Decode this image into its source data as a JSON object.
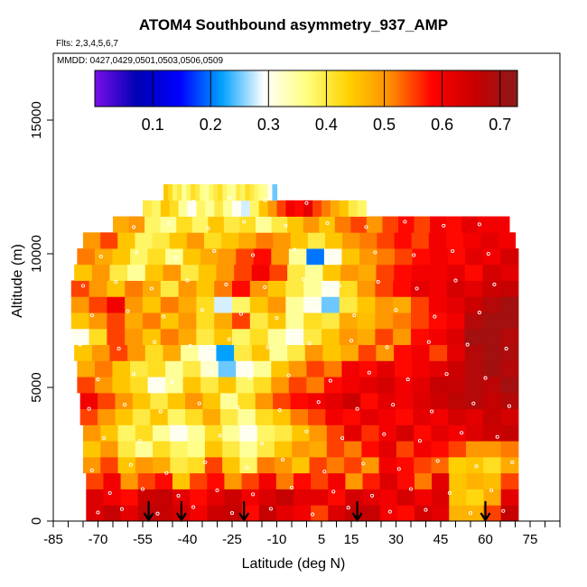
{
  "chart_data": {
    "type": "heatmap",
    "title": "ATOM4 Southbound asymmetry_937_AMP",
    "flights_note": "Flts: 2,3,4,5,6,7",
    "dates_note": "MMDD: 0427,0429,0501,0503,0506,0509",
    "xlabel": "Latitude (deg N)",
    "ylabel": "Altitude (m)",
    "xlim": [
      -85,
      85
    ],
    "ylim": [
      0,
      17500
    ],
    "x_tick_labels": [
      "-85",
      "-70",
      "-55",
      "-40",
      "-25",
      "-10",
      "5",
      "15",
      "30",
      "45",
      "60",
      "75"
    ],
    "x_ticks": [
      -85,
      -70,
      -55,
      -40,
      -25,
      -10,
      5,
      15,
      30,
      45,
      60,
      75
    ],
    "x_minor_ticks": [
      -80,
      -75,
      -65,
      -60,
      -50,
      -45,
      -35,
      -30,
      -20,
      -15,
      -5,
      0,
      10,
      20,
      25,
      35,
      40,
      50,
      55,
      65,
      70,
      80,
      85
    ],
    "y_ticks": [
      0,
      5000,
      10000,
      15000
    ],
    "y_tick_labels": [
      "0",
      "5000",
      "10000",
      "15000"
    ],
    "colorbar": {
      "range": [
        0,
        0.73
      ],
      "tick_values": [
        0.1,
        0.2,
        0.3,
        0.4,
        0.5,
        0.6,
        0.7
      ],
      "tick_labels": [
        "0.1",
        "0.2",
        "0.3",
        "0.4",
        "0.5",
        "0.6",
        "0.7"
      ],
      "colors": [
        "#7a0fe8",
        "#0000b4",
        "#0000ff",
        "#00a0ff",
        "#ffffff",
        "#ffff80",
        "#ffd200",
        "#ff8c00",
        "#ff0000",
        "#c80000",
        "#8b1a1a"
      ]
    },
    "flight_arrow_latitudes": [
      -53,
      -42,
      -21,
      17,
      60
    ],
    "altitude_bands": [
      {
        "alt": 300,
        "lat": [
          -74,
          71
        ],
        "v": [
          0.63,
          0.66,
          0.62,
          0.67,
          0.66,
          0.64,
          0.6,
          0.65,
          0.66,
          0.58,
          0.66,
          0.62,
          0.6,
          0.55,
          0.63,
          0.66,
          0.66,
          0.6,
          0.58,
          0.64,
          0.62,
          0.47,
          0.47,
          0.55,
          0.66
        ]
      },
      {
        "alt": 900,
        "lat": [
          -74,
          71
        ],
        "v": [
          0.63,
          0.6,
          0.58,
          0.65,
          0.66,
          0.62,
          0.58,
          0.62,
          0.65,
          0.6,
          0.63,
          0.66,
          0.62,
          0.62,
          0.58,
          0.64,
          0.62,
          0.6,
          0.64,
          0.6,
          0.63,
          0.45,
          0.43,
          0.48,
          0.62
        ]
      },
      {
        "alt": 1500,
        "lat": [
          -74,
          71
        ],
        "v": [
          0.55,
          0.6,
          0.5,
          0.55,
          0.58,
          0.45,
          0.55,
          0.58,
          0.5,
          0.55,
          0.6,
          0.52,
          0.58,
          0.55,
          0.6,
          0.5,
          0.57,
          0.63,
          0.58,
          0.52,
          0.62,
          0.45,
          0.47,
          0.46,
          0.55
        ]
      },
      {
        "alt": 2100,
        "lat": [
          -75,
          71
        ],
        "v": [
          0.5,
          0.55,
          0.45,
          0.5,
          0.48,
          0.4,
          0.42,
          0.55,
          0.45,
          0.38,
          0.52,
          0.5,
          0.45,
          0.55,
          0.52,
          0.55,
          0.5,
          0.6,
          0.58,
          0.55,
          0.53,
          0.44,
          0.45,
          0.42,
          0.48
        ]
      },
      {
        "alt": 2700,
        "lat": [
          -75,
          71
        ],
        "v": [
          0.45,
          0.5,
          0.4,
          0.35,
          0.42,
          0.38,
          0.36,
          0.45,
          0.4,
          0.35,
          0.4,
          0.45,
          0.5,
          0.48,
          0.55,
          0.52,
          0.58,
          0.62,
          0.55,
          0.6,
          0.58,
          0.55,
          0.5,
          0.5,
          0.52
        ]
      },
      {
        "alt": 3300,
        "lat": [
          -75,
          71
        ],
        "v": [
          0.5,
          0.45,
          0.38,
          0.42,
          0.35,
          0.3,
          0.35,
          0.42,
          0.35,
          0.3,
          0.38,
          0.4,
          0.45,
          0.5,
          0.55,
          0.62,
          0.56,
          0.6,
          0.64,
          0.58,
          0.62,
          0.6,
          0.63,
          0.65,
          0.66
        ]
      },
      {
        "alt": 3900,
        "lat": [
          -76,
          71
        ],
        "v": [
          0.55,
          0.5,
          0.45,
          0.4,
          0.45,
          0.38,
          0.42,
          0.48,
          0.4,
          0.35,
          0.42,
          0.45,
          0.52,
          0.55,
          0.6,
          0.58,
          0.62,
          0.6,
          0.58,
          0.62,
          0.6,
          0.64,
          0.62,
          0.66,
          0.64
        ]
      },
      {
        "alt": 4500,
        "lat": [
          -76,
          71
        ],
        "v": [
          0.6,
          0.55,
          0.5,
          0.45,
          0.4,
          0.45,
          0.5,
          0.45,
          0.35,
          0.42,
          0.5,
          0.55,
          0.58,
          0.6,
          0.62,
          0.65,
          0.58,
          0.62,
          0.6,
          0.63,
          0.65,
          0.67,
          0.68,
          0.66,
          0.68
        ]
      },
      {
        "alt": 5100,
        "lat": [
          -77,
          71
        ],
        "v": [
          0.55,
          0.5,
          0.45,
          0.42,
          0.3,
          0.35,
          0.45,
          0.4,
          0.45,
          0.38,
          0.42,
          0.5,
          0.55,
          0.52,
          0.58,
          0.6,
          0.62,
          0.64,
          0.6,
          0.62,
          0.66,
          0.66,
          0.68,
          0.67,
          0.7
        ]
      },
      {
        "alt": 5700,
        "lat": [
          -77,
          71
        ],
        "v": [
          0.48,
          0.52,
          0.45,
          0.4,
          0.42,
          0.35,
          0.4,
          0.32,
          0.25,
          0.3,
          0.35,
          0.45,
          0.5,
          0.55,
          0.52,
          0.6,
          0.58,
          0.62,
          0.58,
          0.6,
          0.62,
          0.65,
          0.68,
          0.7,
          0.68
        ]
      },
      {
        "alt": 6300,
        "lat": [
          -78,
          71
        ],
        "v": [
          0.45,
          0.5,
          0.55,
          0.5,
          0.42,
          0.48,
          0.35,
          0.3,
          0.22,
          0.4,
          0.45,
          0.35,
          0.4,
          0.5,
          0.45,
          0.48,
          0.55,
          0.5,
          0.58,
          0.6,
          0.55,
          0.62,
          0.68,
          0.7,
          0.69
        ]
      },
      {
        "alt": 6900,
        "lat": [
          -79,
          71
        ],
        "v": [
          0.3,
          0.42,
          0.55,
          0.5,
          0.45,
          0.52,
          0.48,
          0.4,
          0.45,
          0.38,
          0.42,
          0.35,
          0.3,
          0.4,
          0.45,
          0.5,
          0.48,
          0.55,
          0.5,
          0.58,
          0.6,
          0.63,
          0.7,
          0.7,
          0.68
        ]
      },
      {
        "alt": 7500,
        "lat": [
          -79,
          71
        ],
        "v": [
          0.45,
          0.5,
          0.55,
          0.48,
          0.52,
          0.45,
          0.5,
          0.42,
          0.48,
          0.55,
          0.4,
          0.45,
          0.35,
          0.42,
          0.4,
          0.48,
          0.46,
          0.5,
          0.52,
          0.55,
          0.58,
          0.6,
          0.68,
          0.7,
          0.7
        ]
      },
      {
        "alt": 8100,
        "lat": [
          -79,
          71
        ],
        "v": [
          0.5,
          0.55,
          0.6,
          0.5,
          0.45,
          0.52,
          0.48,
          0.42,
          0.28,
          0.38,
          0.45,
          0.5,
          0.35,
          0.3,
          0.25,
          0.4,
          0.45,
          0.5,
          0.48,
          0.55,
          0.6,
          0.62,
          0.65,
          0.68,
          0.7
        ]
      },
      {
        "alt": 8700,
        "lat": [
          -79,
          71
        ],
        "v": [
          0.55,
          0.5,
          0.45,
          0.52,
          0.48,
          0.4,
          0.5,
          0.45,
          0.52,
          0.58,
          0.5,
          0.45,
          0.4,
          0.35,
          0.3,
          0.42,
          0.5,
          0.55,
          0.58,
          0.62,
          0.6,
          0.64,
          0.62,
          0.65,
          0.66
        ]
      },
      {
        "alt": 9300,
        "lat": [
          -78,
          71
        ],
        "v": [
          0.45,
          0.5,
          0.4,
          0.35,
          0.45,
          0.5,
          0.4,
          0.45,
          0.5,
          0.55,
          0.6,
          0.55,
          0.4,
          0.35,
          0.45,
          0.5,
          0.48,
          0.55,
          0.58,
          0.6,
          0.6,
          0.62,
          0.58,
          0.64,
          0.62
        ]
      },
      {
        "alt": 9900,
        "lat": [
          -77,
          71
        ],
        "v": [
          0.52,
          0.48,
          0.45,
          0.38,
          0.42,
          0.35,
          0.45,
          0.48,
          0.5,
          0.55,
          0.58,
          0.5,
          0.35,
          0.2,
          0.3,
          0.45,
          0.5,
          0.52,
          0.55,
          0.58,
          0.6,
          0.58,
          0.62,
          0.6,
          0.64
        ]
      },
      {
        "alt": 10500,
        "lat": [
          -75,
          70
        ],
        "v": [
          0.5,
          0.55,
          0.45,
          0.38,
          0.4,
          0.45,
          0.5,
          0.42,
          0.45,
          0.48,
          0.52,
          0.5,
          0.45,
          0.4,
          0.45,
          0.5,
          0.52,
          0.55,
          0.58,
          0.55,
          0.6,
          0.58,
          0.6,
          0.62,
          0.6
        ]
      },
      {
        "alt": 11100,
        "lat": [
          -65,
          68
        ],
        "v": [
          0.48,
          0.5,
          0.38,
          0.35,
          0.42,
          0.38,
          0.45,
          0.4,
          0.42,
          0.35,
          0.4,
          0.45,
          0.5,
          0.45,
          0.52,
          0.55,
          0.5,
          0.55,
          0.58,
          0.55,
          0.6,
          0.58,
          0.62,
          0.6,
          0.6
        ]
      },
      {
        "alt": 11700,
        "lat": [
          -55,
          20
        ],
        "v": [
          0.4,
          0.38,
          0.45,
          0.42,
          0.35,
          0.3,
          0.38,
          0.35,
          0.4,
          0.35,
          0.3,
          0.28,
          0.38,
          0.45,
          0.5,
          0.55,
          0.6,
          0.58,
          0.62,
          0.55,
          0.52,
          0.48,
          0.45,
          0.4,
          0.38
        ]
      },
      {
        "alt": 12300,
        "lat": [
          -48,
          -10
        ],
        "v": [
          0.45,
          0.42,
          0.38,
          0.4,
          0.35,
          0.38,
          0.42,
          0.4,
          0.36,
          0.35,
          0.38,
          0.4,
          0.42,
          0.38,
          0.36,
          0.35,
          0.4,
          0.38,
          0.42,
          0.4,
          0.38,
          0.36,
          0.35,
          0.3,
          0.25
        ]
      }
    ],
    "sample_points": [
      [
        -70,
        320
      ],
      [
        -62,
        450
      ],
      [
        -50,
        280
      ],
      [
        -38,
        520
      ],
      [
        -25,
        300
      ],
      [
        -12,
        460
      ],
      [
        2,
        250
      ],
      [
        14,
        500
      ],
      [
        28,
        350
      ],
      [
        40,
        420
      ],
      [
        55,
        300
      ],
      [
        66,
        380
      ],
      [
        -66,
        1050
      ],
      [
        -55,
        1200
      ],
      [
        -43,
        950
      ],
      [
        -30,
        1150
      ],
      [
        -18,
        1000
      ],
      [
        -5,
        1250
      ],
      [
        9,
        1100
      ],
      [
        22,
        950
      ],
      [
        35,
        1200
      ],
      [
        48,
        1050
      ],
      [
        62,
        1150
      ],
      [
        -72,
        1900
      ],
      [
        -59,
        2100
      ],
      [
        -47,
        1800
      ],
      [
        -34,
        2200
      ],
      [
        -20,
        2000
      ],
      [
        -8,
        2300
      ],
      [
        6,
        1850
      ],
      [
        19,
        2150
      ],
      [
        31,
        1950
      ],
      [
        44,
        2250
      ],
      [
        57,
        2050
      ],
      [
        69,
        2200
      ],
      [
        -68,
        3100
      ],
      [
        -56,
        3000
      ],
      [
        -41,
        3300
      ],
      [
        -29,
        3200
      ],
      [
        -15,
        2900
      ],
      [
        0,
        3350
      ],
      [
        12,
        3100
      ],
      [
        26,
        3250
      ],
      [
        38,
        3000
      ],
      [
        52,
        3300
      ],
      [
        64,
        3150
      ],
      [
        -73,
        4200
      ],
      [
        -61,
        4350
      ],
      [
        -49,
        4100
      ],
      [
        -36,
        4400
      ],
      [
        -23,
        4250
      ],
      [
        -9,
        4150
      ],
      [
        4,
        4450
      ],
      [
        17,
        4200
      ],
      [
        29,
        4350
      ],
      [
        42,
        4100
      ],
      [
        56,
        4400
      ],
      [
        68,
        4300
      ],
      [
        -70,
        5300
      ],
      [
        -58,
        5500
      ],
      [
        -45,
        5200
      ],
      [
        -32,
        5600
      ],
      [
        -19,
        5350
      ],
      [
        -6,
        5450
      ],
      [
        8,
        5250
      ],
      [
        21,
        5550
      ],
      [
        34,
        5300
      ],
      [
        47,
        5500
      ],
      [
        60,
        5350
      ],
      [
        -76,
        6600
      ],
      [
        -63,
        6450
      ],
      [
        -51,
        6700
      ],
      [
        -39,
        6550
      ],
      [
        -26,
        6800
      ],
      [
        -13,
        6500
      ],
      [
        1,
        6650
      ],
      [
        15,
        6750
      ],
      [
        27,
        6500
      ],
      [
        41,
        6700
      ],
      [
        54,
        6600
      ],
      [
        67,
        6450
      ],
      [
        -72,
        7700
      ],
      [
        -60,
        7850
      ],
      [
        -48,
        7650
      ],
      [
        -35,
        7900
      ],
      [
        -22,
        7750
      ],
      [
        -10,
        7600
      ],
      [
        3,
        7850
      ],
      [
        16,
        7700
      ],
      [
        30,
        7900
      ],
      [
        43,
        7650
      ],
      [
        58,
        7800
      ],
      [
        -75,
        8800
      ],
      [
        -64,
        8950
      ],
      [
        -52,
        8700
      ],
      [
        -40,
        9000
      ],
      [
        -27,
        8850
      ],
      [
        -14,
        8750
      ],
      [
        -1,
        9050
      ],
      [
        11,
        8800
      ],
      [
        24,
        8950
      ],
      [
        37,
        8700
      ],
      [
        50,
        9000
      ],
      [
        63,
        8850
      ],
      [
        -69,
        9900
      ],
      [
        -57,
        10050
      ],
      [
        -44,
        9850
      ],
      [
        -31,
        10100
      ],
      [
        -18,
        9950
      ],
      [
        -4,
        10150
      ],
      [
        10,
        9900
      ],
      [
        23,
        10050
      ],
      [
        36,
        9950
      ],
      [
        49,
        10100
      ],
      [
        61,
        10000
      ],
      [
        -58,
        11000
      ],
      [
        -46,
        11150
      ],
      [
        -33,
        10950
      ],
      [
        -21,
        11200
      ],
      [
        -7,
        11050
      ],
      [
        7,
        11150
      ],
      [
        20,
        11000
      ],
      [
        33,
        11200
      ],
      [
        46,
        11050
      ],
      [
        58,
        11100
      ],
      [
        -50,
        12050
      ],
      [
        -38,
        11950
      ],
      [
        -26,
        12100
      ],
      [
        -14,
        12000
      ],
      [
        0,
        11900
      ],
      [
        12,
        12050
      ]
    ]
  }
}
